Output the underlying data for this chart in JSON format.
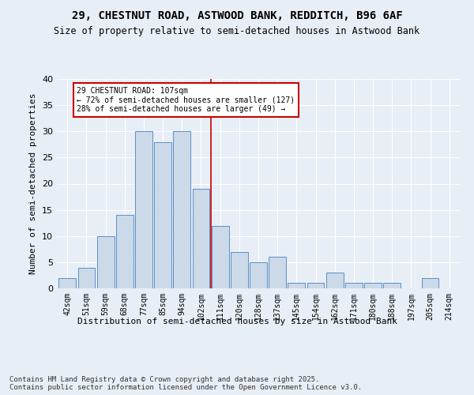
{
  "title1": "29, CHESTNUT ROAD, ASTWOOD BANK, REDDITCH, B96 6AF",
  "title2": "Size of property relative to semi-detached houses in Astwood Bank",
  "xlabel": "Distribution of semi-detached houses by size in Astwood Bank",
  "ylabel": "Number of semi-detached properties",
  "categories": [
    "42sqm",
    "51sqm",
    "59sqm",
    "68sqm",
    "77sqm",
    "85sqm",
    "94sqm",
    "102sqm",
    "111sqm",
    "120sqm",
    "128sqm",
    "137sqm",
    "145sqm",
    "154sqm",
    "162sqm",
    "171sqm",
    "180sqm",
    "188sqm",
    "197sqm",
    "205sqm",
    "214sqm"
  ],
  "values": [
    2,
    4,
    10,
    14,
    30,
    28,
    30,
    19,
    12,
    7,
    5,
    6,
    1,
    1,
    3,
    1,
    1,
    1,
    0,
    2,
    0
  ],
  "bar_color": "#ccd9e8",
  "bar_edge_color": "#5b8fc9",
  "vline_x": 7.5,
  "vline_color": "#cc0000",
  "annotation_text": "29 CHESTNUT ROAD: 107sqm\n← 72% of semi-detached houses are smaller (127)\n28% of semi-detached houses are larger (49) →",
  "annotation_box_color": "#ffffff",
  "annotation_box_edge": "#cc0000",
  "bg_color": "#e8eef5",
  "plot_bg_color": "#e8eef5",
  "footer": "Contains HM Land Registry data © Crown copyright and database right 2025.\nContains public sector information licensed under the Open Government Licence v3.0.",
  "ylim": [
    0,
    40
  ],
  "yticks": [
    0,
    5,
    10,
    15,
    20,
    25,
    30,
    35,
    40
  ]
}
